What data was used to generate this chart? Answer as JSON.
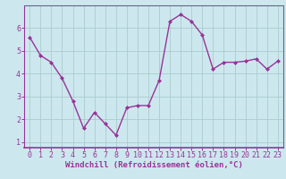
{
  "x": [
    0,
    1,
    2,
    3,
    4,
    5,
    6,
    7,
    8,
    9,
    10,
    11,
    12,
    13,
    14,
    15,
    16,
    17,
    18,
    19,
    20,
    21,
    22,
    23
  ],
  "y": [
    5.6,
    4.8,
    4.5,
    3.8,
    2.8,
    1.6,
    2.3,
    1.8,
    1.3,
    2.5,
    2.6,
    2.6,
    3.7,
    6.3,
    6.6,
    6.3,
    5.7,
    4.2,
    4.5,
    4.5,
    4.55,
    4.65,
    4.2,
    4.55
  ],
  "line_color": "#993399",
  "marker": "D",
  "marker_size": 2.0,
  "bg_color": "#cce8ee",
  "plot_bg_color": "#cce8ee",
  "grid_color": "#aacccc",
  "spine_color": "#666688",
  "xlabel": "Windchill (Refroidissement éolien,°C)",
  "xlim": [
    -0.5,
    23.5
  ],
  "ylim": [
    0.75,
    7.0
  ],
  "yticks": [
    1,
    2,
    3,
    4,
    5,
    6
  ],
  "xticks": [
    0,
    1,
    2,
    3,
    4,
    5,
    6,
    7,
    8,
    9,
    10,
    11,
    12,
    13,
    14,
    15,
    16,
    17,
    18,
    19,
    20,
    21,
    22,
    23
  ],
  "xlabel_fontsize": 6.5,
  "tick_fontsize": 6.0,
  "line_width": 1.0
}
